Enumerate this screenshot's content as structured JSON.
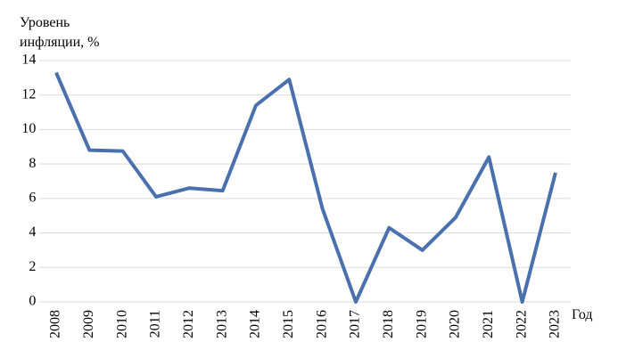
{
  "chart_data": {
    "type": "line",
    "y_label": [
      "Уровень",
      "инфляции, %"
    ],
    "x_label": "Год",
    "categories": [
      "2008",
      "2009",
      "2010",
      "2011",
      "2012",
      "2013",
      "2014",
      "2015",
      "2016",
      "2017",
      "2018",
      "2019",
      "2020",
      "2021",
      "2022",
      "2023"
    ],
    "series": [
      {
        "color": "#4a70ad",
        "values": [
          13.3,
          8.8,
          8.75,
          6.1,
          6.6,
          6.45,
          11.4,
          12.9,
          5.4,
          0,
          4.3,
          3.0,
          4.9,
          8.4,
          0,
          7.5
        ]
      }
    ],
    "ylim": [
      0,
      14
    ],
    "yticks": [
      0,
      2,
      4,
      6,
      8,
      10,
      12,
      14
    ],
    "grid": true
  }
}
